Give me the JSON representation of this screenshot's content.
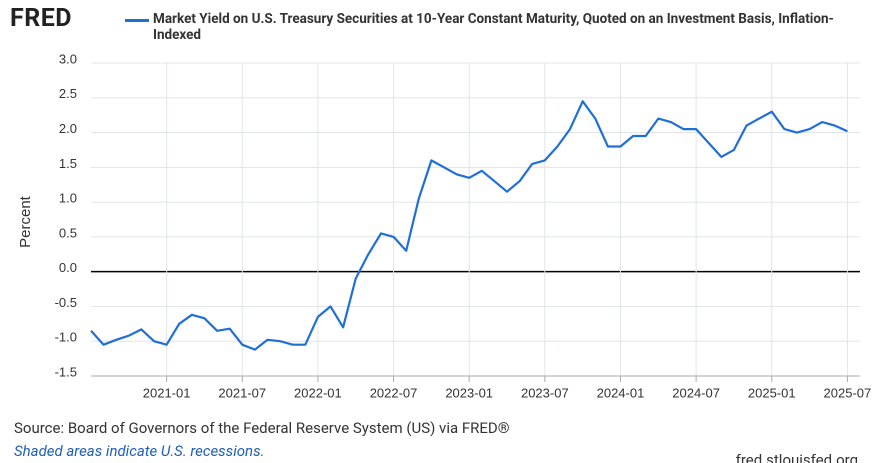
{
  "branding": {
    "logo": "FRED",
    "site": "fred.stlouisfed.org"
  },
  "chart_data": {
    "type": "line",
    "ylabel": "Percent",
    "source": "Source: Board of Governors of the Federal Reserve System (US) via FRED®",
    "note": "Shaded areas indicate U.S. recessions.",
    "x": [
      "2020-07",
      "2020-08",
      "2020-09",
      "2020-10",
      "2020-11",
      "2020-12",
      "2021-01",
      "2021-02",
      "2021-03",
      "2021-04",
      "2021-05",
      "2021-06",
      "2021-07",
      "2021-08",
      "2021-09",
      "2021-10",
      "2021-11",
      "2021-12",
      "2022-01",
      "2022-02",
      "2022-03",
      "2022-04",
      "2022-05",
      "2022-06",
      "2022-07",
      "2022-08",
      "2022-09",
      "2022-10",
      "2022-11",
      "2022-12",
      "2023-01",
      "2023-02",
      "2023-03",
      "2023-04",
      "2023-05",
      "2023-06",
      "2023-07",
      "2023-08",
      "2023-09",
      "2023-10",
      "2023-11",
      "2023-12",
      "2024-01",
      "2024-02",
      "2024-03",
      "2024-04",
      "2024-05",
      "2024-06",
      "2024-07",
      "2024-08",
      "2024-09",
      "2024-10",
      "2024-11",
      "2024-12",
      "2025-01",
      "2025-02",
      "2025-03",
      "2025-04",
      "2025-05",
      "2025-06",
      "2025-07"
    ],
    "series": [
      {
        "name": "Market Yield on U.S. Treasury Securities at 10-Year Constant Maturity, Quoted on an Investment Basis, Inflation-Indexed",
        "color": "#1f6fd6",
        "values": [
          -0.85,
          -1.05,
          -0.98,
          -0.92,
          -0.83,
          -1.0,
          -1.05,
          -0.75,
          -0.62,
          -0.67,
          -0.85,
          -0.82,
          -1.05,
          -1.12,
          -0.98,
          -1.0,
          -1.05,
          -1.05,
          -0.65,
          -0.5,
          -0.8,
          -0.1,
          0.25,
          0.55,
          0.5,
          0.3,
          1.05,
          1.6,
          1.5,
          1.4,
          1.35,
          1.45,
          1.3,
          1.15,
          1.3,
          1.55,
          1.6,
          1.8,
          2.05,
          2.45,
          2.2,
          1.8,
          1.8,
          1.95,
          1.95,
          2.2,
          2.15,
          2.05,
          2.05,
          1.85,
          1.65,
          1.75,
          2.1,
          2.2,
          2.3,
          2.05,
          2.0,
          2.05,
          2.15,
          2.1,
          2.02
        ]
      }
    ],
    "xlim": [
      "2020-07",
      "2025-08"
    ],
    "xticks": [
      "2021-01",
      "2021-07",
      "2022-01",
      "2022-07",
      "2023-01",
      "2023-07",
      "2024-01",
      "2024-07",
      "2025-01",
      "2025-07"
    ],
    "ylim": [
      -1.5,
      3
    ],
    "yticks": [
      {
        "value": -1.5,
        "label": "-1.5"
      },
      {
        "value": -1,
        "label": "-1.0"
      },
      -0.5,
      {
        "value": 0,
        "label": "0.0"
      },
      0.5,
      {
        "value": 1,
        "label": "1.0"
      },
      1.5,
      {
        "value": 2,
        "label": "2.0"
      },
      2.5,
      {
        "value": 3,
        "label": "3.0"
      }
    ],
    "grid": true
  }
}
